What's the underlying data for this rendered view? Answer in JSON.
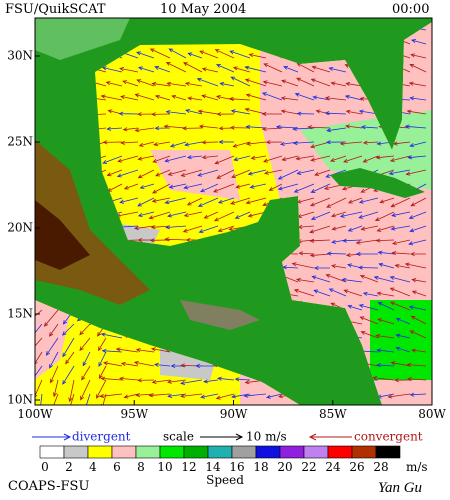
{
  "header": {
    "title": "FSU/QuikSCAT",
    "date": "10 May 2004",
    "time": "00:00"
  },
  "map": {
    "lat_labels": [
      {
        "value": 10,
        "label": "10N"
      },
      {
        "value": 15,
        "label": "15N"
      },
      {
        "value": 20,
        "label": "20N"
      },
      {
        "value": 25,
        "label": "25N"
      },
      {
        "value": 30,
        "label": "30N"
      }
    ],
    "lon_labels": [
      {
        "value": -100,
        "label": "100W"
      },
      {
        "value": -95,
        "label": "95W"
      },
      {
        "value": -90,
        "label": "90W"
      },
      {
        "value": -85,
        "label": "85W"
      },
      {
        "value": -80,
        "label": "80W"
      }
    ]
  },
  "legend": {
    "divergent": "divergent",
    "scale": "scale",
    "scale_value": "10 m/s",
    "convergent": "convergent",
    "divergent_color": "#1e2ee0",
    "convergent_color": "#b01818"
  },
  "colorbar": {
    "labels": [
      0,
      2,
      4,
      6,
      8,
      10,
      12,
      14,
      16,
      18,
      20,
      22,
      24,
      26,
      28
    ],
    "unit": "m/s",
    "title": "Speed",
    "colors": [
      "#ffffff",
      "#c8c8c8",
      "#ffff00",
      "#ffc0c0",
      "#98f098",
      "#00e800",
      "#00b000",
      "#20b0b0",
      "#a0a0a0",
      "#1010e0",
      "#9020e0",
      "#c080f0",
      "#ff0000",
      "#b03000",
      "#000000"
    ]
  },
  "footer": {
    "org": "COAPS-FSU",
    "signature": "Yan Gu"
  }
}
